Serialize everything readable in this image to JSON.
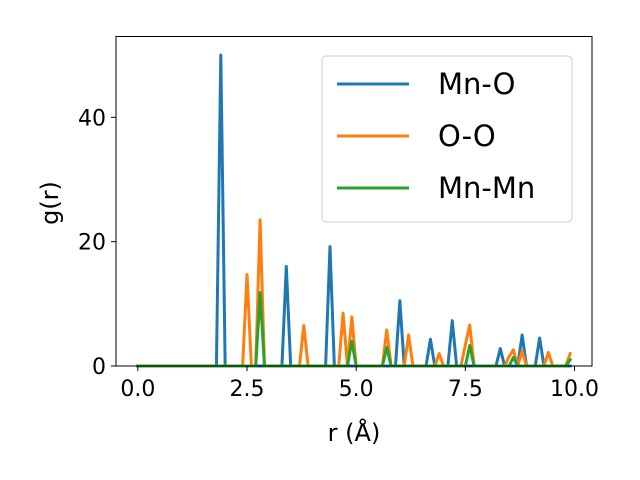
{
  "chart_data": {
    "type": "line",
    "xlabel": "r (Å)",
    "ylabel": "g(r)",
    "xlim": [
      -0.5,
      10.4
    ],
    "ylim": [
      0,
      53
    ],
    "xticks": [
      0.0,
      2.5,
      5.0,
      7.5,
      10.0
    ],
    "xtick_labels": [
      "0.0",
      "2.5",
      "5.0",
      "7.5",
      "10.0"
    ],
    "yticks": [
      0,
      20,
      40
    ],
    "ytick_labels": [
      "0",
      "20",
      "40"
    ],
    "grid": false,
    "legend_position": "top-right",
    "series": [
      {
        "name": "Mn-O",
        "color": "#1f77b4",
        "x": [
          0.0,
          1.8,
          1.9,
          2.0,
          3.3,
          3.4,
          3.5,
          4.3,
          4.4,
          4.5,
          5.9,
          6.0,
          6.1,
          6.6,
          6.7,
          6.8,
          7.1,
          7.2,
          7.3,
          8.2,
          8.3,
          8.4,
          8.7,
          8.8,
          8.9,
          9.1,
          9.2,
          9.3,
          9.9
        ],
        "y": [
          0,
          0,
          50,
          0,
          0,
          16,
          0,
          0,
          19.2,
          0,
          0,
          10.5,
          0,
          0,
          4.3,
          0,
          0,
          7.3,
          0,
          0,
          2.8,
          0,
          0,
          5,
          0,
          0,
          4.5,
          0,
          0
        ]
      },
      {
        "name": "O-O",
        "color": "#ff7f0e",
        "x": [
          0.0,
          2.4,
          2.5,
          2.6,
          2.7,
          2.8,
          2.9,
          3.7,
          3.8,
          3.9,
          4.6,
          4.7,
          4.8,
          4.9,
          5.0,
          5.6,
          5.7,
          5.8,
          6.1,
          6.2,
          6.3,
          6.8,
          6.9,
          7.0,
          7.4,
          7.5,
          7.6,
          7.7,
          8.4,
          8.5,
          8.6,
          8.7,
          8.8,
          8.9,
          9.3,
          9.4,
          9.5,
          9.8,
          9.9
        ],
        "y": [
          0,
          0,
          14.7,
          0,
          0,
          23.5,
          0,
          0,
          6.5,
          0,
          0,
          8.5,
          0,
          7.9,
          0,
          0,
          5.8,
          0,
          0,
          5,
          0,
          0,
          2,
          0,
          0,
          3.4,
          6.6,
          0,
          0,
          1.5,
          2.6,
          0,
          2.4,
          0,
          0,
          2.2,
          0,
          0,
          2
        ]
      },
      {
        "name": "Mn-Mn",
        "color": "#2ca02c",
        "x": [
          0.0,
          2.7,
          2.8,
          2.9,
          4.8,
          4.9,
          5.0,
          5.6,
          5.7,
          5.8,
          7.5,
          7.6,
          7.7,
          8.5,
          8.6,
          8.7,
          9.8,
          9.9
        ],
        "y": [
          0,
          0,
          11.8,
          0,
          0,
          4,
          0,
          0,
          3,
          0,
          0,
          3.3,
          0,
          0,
          1.4,
          0,
          0,
          1
        ]
      }
    ]
  }
}
